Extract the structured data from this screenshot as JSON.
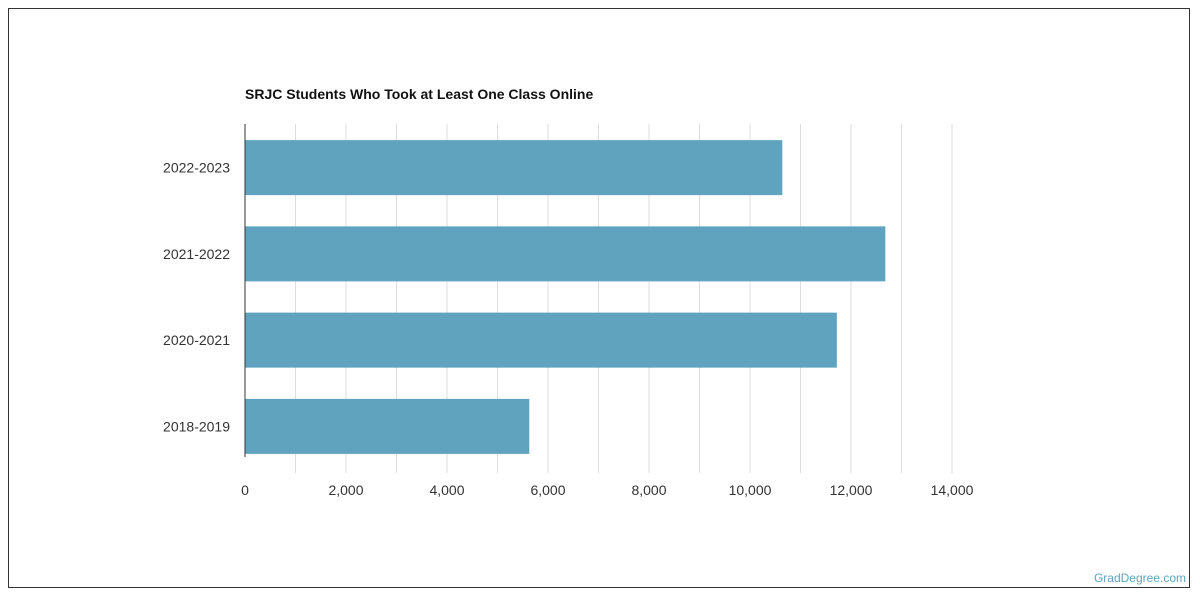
{
  "chart_data": {
    "type": "bar",
    "orientation": "horizontal",
    "title": "SRJC Students Who Took at Least One Class Online",
    "categories": [
      "2022-2023",
      "2021-2022",
      "2020-2021",
      "2018-2019"
    ],
    "values": [
      10640,
      12680,
      11720,
      5630
    ],
    "xlim": [
      0,
      14000
    ],
    "xticks": [
      0,
      2000,
      4000,
      6000,
      8000,
      10000,
      12000,
      14000
    ],
    "xtick_labels": [
      "0",
      "2,000",
      "4,000",
      "6,000",
      "8,000",
      "10,000",
      "12,000",
      "14,000"
    ],
    "grid": true,
    "bar_color": "#5fa3bf",
    "grid_color": "#dddddd"
  },
  "watermark": {
    "text": "GradDegree.com",
    "color": "#5fa3bf"
  }
}
